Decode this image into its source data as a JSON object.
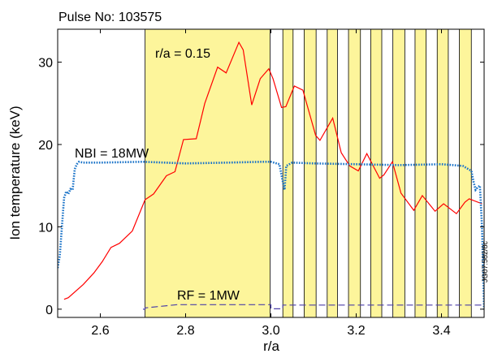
{
  "chart_data": {
    "type": "line",
    "title": "Pulse No: 103575",
    "xlabel": "r/a",
    "ylabel": "Ion temperature (keV)",
    "xlim": [
      2.5,
      3.5
    ],
    "ylim": [
      -1,
      34
    ],
    "x_ticks": [
      2.6,
      2.8,
      3.0,
      3.2,
      3.4
    ],
    "x_tick_labels": [
      "2.6",
      "2.8",
      "3.0",
      "3.2",
      "3.4"
    ],
    "y_ticks": [
      0,
      10,
      20,
      30
    ],
    "y_tick_labels": [
      "0",
      "10",
      "20",
      "30"
    ],
    "grid": false,
    "shaded_regions": [
      [
        2.705,
        2.998
      ],
      [
        3.028,
        3.052
      ],
      [
        3.078,
        3.106
      ],
      [
        3.132,
        3.156
      ],
      [
        3.182,
        3.21
      ],
      [
        3.234,
        3.26
      ],
      [
        3.286,
        3.314
      ],
      [
        3.338,
        3.364
      ],
      [
        3.39,
        3.416
      ],
      [
        3.442,
        3.47
      ]
    ],
    "series": [
      {
        "color": "#ff0000",
        "style": "solid",
        "x": [
          2.515,
          2.525,
          2.56,
          2.585,
          2.605,
          2.625,
          2.645,
          2.675,
          2.705,
          2.725,
          2.755,
          2.775,
          2.795,
          2.825,
          2.845,
          2.875,
          2.895,
          2.925,
          2.935,
          2.955,
          2.975,
          2.995,
          3.005,
          3.025,
          3.035,
          3.055,
          3.075,
          3.105,
          3.115,
          3.145,
          3.165,
          3.185,
          3.205,
          3.225,
          3.255,
          3.265,
          3.285,
          3.305,
          3.335,
          3.355,
          3.385,
          3.405,
          3.435,
          3.455,
          3.465,
          3.495
        ],
        "y": [
          1.2,
          1.4,
          3.0,
          4.4,
          5.8,
          7.5,
          8.0,
          9.5,
          13.3,
          14.0,
          16.2,
          16.7,
          20.6,
          20.7,
          25.0,
          29.4,
          28.7,
          32.4,
          31.5,
          24.8,
          28.0,
          29.2,
          28.0,
          24.5,
          24.6,
          27.1,
          26.6,
          21.1,
          20.5,
          23.2,
          19.0,
          17.4,
          16.8,
          18.9,
          15.9,
          16.3,
          17.9,
          14.1,
          12.0,
          13.8,
          11.9,
          12.8,
          11.6,
          13.0,
          13.4,
          12.8
        ]
      },
      {
        "name": "NBI = 18MW",
        "color": "#1a73c8",
        "style": "dotted",
        "x": [
          2.5,
          2.505,
          2.51,
          2.515,
          2.52,
          2.525,
          2.53,
          2.535,
          2.54,
          2.545,
          2.55,
          2.56,
          2.6,
          2.7,
          2.8,
          2.9,
          2.98,
          3.0,
          3.02,
          3.026,
          3.03,
          3.032,
          3.036,
          3.05,
          3.1,
          3.2,
          3.3,
          3.4,
          3.45,
          3.47,
          3.475,
          3.48,
          3.485,
          3.49,
          3.495,
          3.5
        ],
        "y": [
          5.0,
          6.5,
          10.0,
          13.5,
          14.3,
          14.0,
          14.6,
          14.5,
          17.0,
          17.6,
          17.9,
          17.8,
          17.8,
          17.9,
          17.7,
          17.8,
          17.9,
          17.9,
          17.6,
          16.0,
          15.0,
          14.5,
          17.4,
          17.8,
          17.7,
          17.6,
          17.5,
          17.6,
          17.4,
          16.8,
          15.5,
          14.5,
          14.8,
          15.0,
          10.0,
          0.0
        ]
      },
      {
        "name": "RF = 1MW",
        "color": "#4b3fa8",
        "style": "dashed",
        "x": [
          2.7,
          2.705,
          2.705,
          2.78,
          3.0,
          3.0,
          3.028,
          3.028,
          3.5
        ],
        "y": [
          0,
          0,
          0.15,
          0.55,
          0.55,
          0.05,
          0.05,
          0.5,
          0.5
        ]
      }
    ],
    "annotations": [
      {
        "text": "r/a = 0.15",
        "x": 2.83,
        "y": 30.9
      },
      {
        "text": "NBI = 18MW",
        "x": 2.52,
        "y": 19.3
      },
      {
        "text": "RF = 1MW",
        "x": 2.83,
        "y": 2.1
      }
    ],
    "side_label": "JG07.582/8c"
  }
}
